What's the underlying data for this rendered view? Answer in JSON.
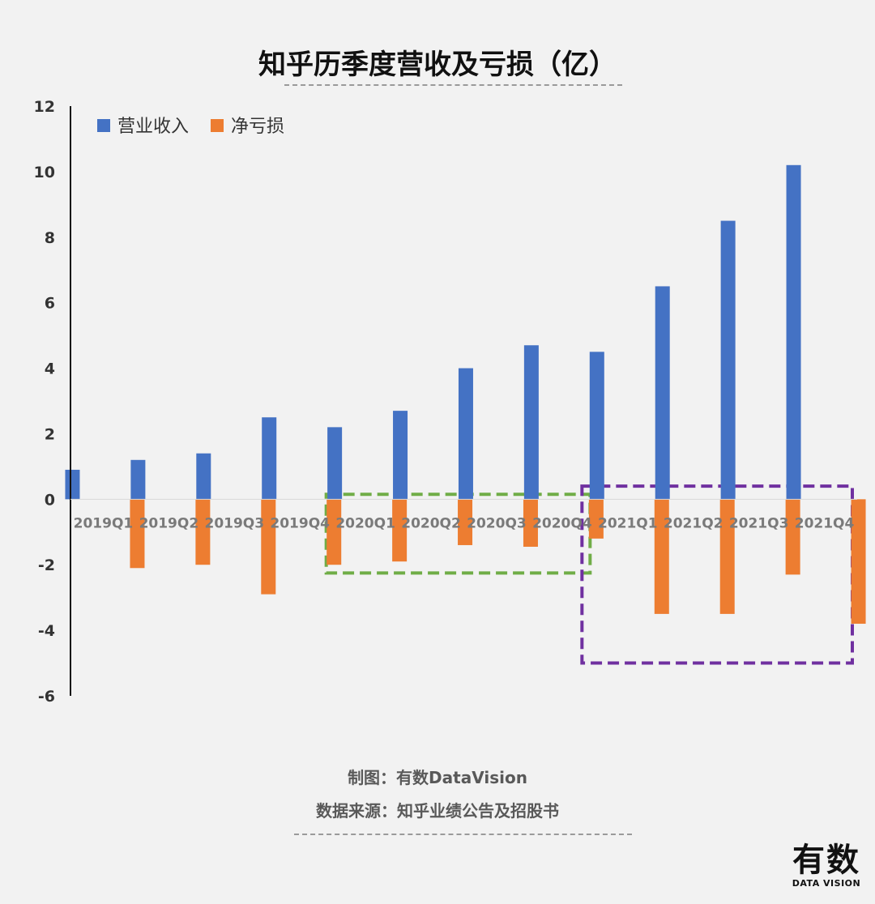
{
  "chart_data": {
    "type": "bar",
    "title": "知乎历季度营收及亏损（亿）",
    "categories": [
      "2019Q1",
      "2019Q2",
      "2019Q3",
      "2019Q4",
      "2020Q1",
      "2020Q2",
      "2020Q3",
      "2020Q4",
      "2021Q1",
      "2021Q2",
      "2021Q3",
      "2021Q4"
    ],
    "series": [
      {
        "name": "营业收入",
        "color": "#4472c4",
        "values": [
          0.9,
          1.2,
          1.4,
          2.5,
          2.2,
          2.7,
          4.0,
          4.7,
          4.5,
          6.5,
          8.5,
          10.2
        ]
      },
      {
        "name": "净亏损",
        "color": "#ed7d31",
        "values": [
          -2.1,
          -2.0,
          -2.9,
          -2.0,
          -1.9,
          -1.4,
          -1.45,
          -1.2,
          -3.5,
          -3.5,
          -2.3,
          -3.8
        ]
      }
    ],
    "ylim": [
      -6,
      12
    ],
    "yticks": [
      12,
      10,
      8,
      6,
      4,
      2,
      0,
      -2,
      -4,
      -6
    ],
    "xlabel": "",
    "ylabel": "",
    "legend_position": "top-left",
    "grid": false,
    "annotations": [
      {
        "type": "dashed-box",
        "color": "#70ad47",
        "categories": [
          "2020Q1",
          "2020Q4"
        ]
      },
      {
        "type": "dashed-box",
        "color": "#7030a0",
        "categories": [
          "2021Q1",
          "2021Q4"
        ]
      }
    ]
  },
  "footer": {
    "credit": "制图：有数DataVision",
    "source": "数据来源：知乎业绩公告及招股书"
  },
  "logo": {
    "main": "有数",
    "sub": "DATA VISION"
  }
}
